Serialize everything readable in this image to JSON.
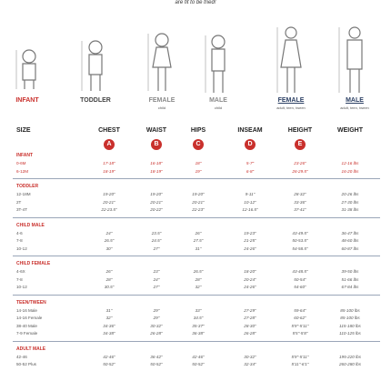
{
  "header_note": "are fit to be tried!",
  "figures": [
    {
      "label": "INFANT",
      "sub": null
    },
    {
      "label": "TODDLER",
      "sub": null
    },
    {
      "label": "FEMALE",
      "sub": "child"
    },
    {
      "label": "MALE",
      "sub": "child"
    },
    {
      "label": "FEMALE",
      "sub": "adult, teen, tween"
    },
    {
      "label": "MALE",
      "sub": "adult, teen, tween"
    }
  ],
  "columns": [
    "SIZE",
    "CHEST",
    "WAIST",
    "HIPS",
    "INSEAM",
    "HEIGHT",
    "WEIGHT"
  ],
  "letters": [
    "A",
    "B",
    "C",
    "D",
    "E"
  ],
  "sections": [
    {
      "title": "INFANT",
      "rows": [
        [
          "0-6M",
          "17-18\"",
          "16-18\"",
          "18\"",
          "5-7\"",
          "23-26\"",
          "12-16 lbs"
        ],
        [
          "6-12M",
          "18-19\"",
          "18-19\"",
          "19\"",
          "6-8\"",
          "26-29.5\"",
          "16-20 lbs"
        ]
      ]
    },
    {
      "title": "TODDLER",
      "rows": [
        [
          "12-18M",
          "19-20\"",
          "19-20\"",
          "19-20\"",
          "9-11\"",
          "28-32\"",
          "20-26 lbs"
        ],
        [
          "2T",
          "20-21\"",
          "20-21\"",
          "20-21\"",
          "10-12\"",
          "33-36\"",
          "27-30 lbs"
        ],
        [
          "3T-4T",
          "22-23.5\"",
          "20-22\"",
          "22-23\"",
          "12-16.5\"",
          "37-41\"",
          "31-38 lbs"
        ]
      ]
    },
    {
      "title": "CHILD MALE",
      "rows": [
        [
          "4-6",
          "24\"",
          "23.5\"",
          "26\"",
          "19-23\"",
          "43-49.5\"",
          "36-47 lbs"
        ],
        [
          "7-8",
          "26.5\"",
          "24.5\"",
          "27.5\"",
          "21-25\"",
          "50-53.5\"",
          "48-60 lbs"
        ],
        [
          "10-12",
          "30\"",
          "27\"",
          "31\"",
          "24-26\"",
          "54-58.5\"",
          "60-87 lbs"
        ]
      ]
    },
    {
      "title": "CHILD FEMALE",
      "rows": [
        [
          "4-6X",
          "26\"",
          "23\"",
          "26.5\"",
          "18-20\"",
          "43-48.5\"",
          "39-50 lbs"
        ],
        [
          "7-8",
          "28\"",
          "24\"",
          "28\"",
          "20-24\"",
          "50-54\"",
          "51-66 lbs"
        ],
        [
          "10-12",
          "30.5\"",
          "27\"",
          "32\"",
          "24-26\"",
          "54-60\"",
          "67-84 lbs"
        ]
      ]
    },
    {
      "title": "TEEN/TWEEN",
      "rows": [
        [
          "14-16 Male",
          "31\"",
          "29\"",
          "33\"",
          "27-29\"",
          "59-64\"",
          "85-100 lbs"
        ],
        [
          "14-16 Female",
          "32\"",
          "29\"",
          "34.5\"",
          "27-28\"",
          "60-62\"",
          "85-100 lbs"
        ],
        [
          "38-40 Male",
          "34-36\"",
          "30-32\"",
          "35-37\"",
          "28-30\"",
          "5'9\"-5'11\"",
          "115-180 lbs"
        ],
        [
          "7-9 Female",
          "34-38\"",
          "26-28\"",
          "36-38\"",
          "26-28\"",
          "5'5\"-5'8\"",
          "110-125 lbs"
        ]
      ]
    },
    {
      "title": "ADULT MALE",
      "rows": [
        [
          "42-46",
          "42-46\"",
          "36-42\"",
          "42-46\"",
          "30-32\"",
          "5'9\"-5'11\"",
          "195-220 lbs"
        ],
        [
          "50-52 Plus",
          "50-52\"",
          "50-52\"",
          "50-52\"",
          "32-34\"",
          "5'11\"-6'1\"",
          "260-280 lbs"
        ]
      ]
    }
  ]
}
